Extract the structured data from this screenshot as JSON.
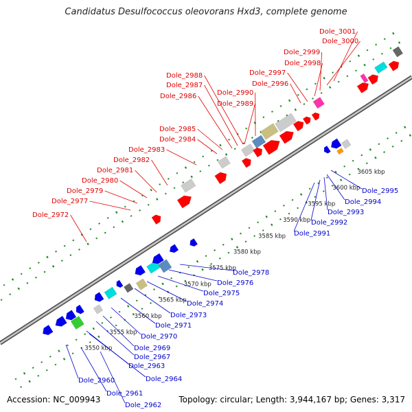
{
  "title": "Candidatus Desulfococcus oleovorans Hxd3, complete genome",
  "footer": {
    "accession": "Accession: NC_009943",
    "summary": "Topology: circular; Length: 3,944,167 bp; Genes: 3,317"
  },
  "colors": {
    "plus_strand_label": "#e00000",
    "minus_strand_label": "#0000cc",
    "tick": "#228b22",
    "backbone": "#888888",
    "gene_red": "#ff0000",
    "gene_blue": "#0000ee",
    "gene_cyan": "#00dddd",
    "gene_gray": "#cccccc",
    "gene_dark": "#666666",
    "gene_olive": "#c8c080",
    "gene_steel": "#5b8bc0",
    "gene_green": "#33cc33",
    "gene_magenta": "#ff33aa",
    "gene_orange": "#ff9900",
    "gene_purple": "#7777dd"
  },
  "scale_labels": [
    "3550 kbp",
    "3555 kbp",
    "3560 kbp",
    "3565 kbp",
    "3570 kbp",
    "3575 kbp",
    "3580 kbp",
    "3585 kbp",
    "3590 kbp",
    "3595 kbp",
    "3600 kbp",
    "3605 kbp"
  ],
  "plus_labels": [
    "Dole_3001",
    "Dole_3000",
    "Dole_2999",
    "Dole_2998",
    "Dole_2997",
    "Dole_2996",
    "Dole_2990",
    "Dole_2989",
    "Dole_2988",
    "Dole_2987",
    "Dole_2986",
    "Dole_2985",
    "Dole_2984",
    "Dole_2983",
    "Dole_2982",
    "Dole_2981",
    "Dole_2980",
    "Dole_2979",
    "Dole_2977",
    "Dole_2972"
  ],
  "minus_labels": [
    "Dole_2995",
    "Dole_2994",
    "Dole_2993",
    "Dole_2992",
    "Dole_2991",
    "Dole_2978",
    "Dole_2976",
    "Dole_2975",
    "Dole_2974",
    "Dole_2973",
    "Dole_2971",
    "Dole_2970",
    "Dole_2969",
    "Dole_2967",
    "Dole_2963",
    "Dole_2964",
    "Dole_2960",
    "Dole_2961",
    "Dole_2962"
  ]
}
